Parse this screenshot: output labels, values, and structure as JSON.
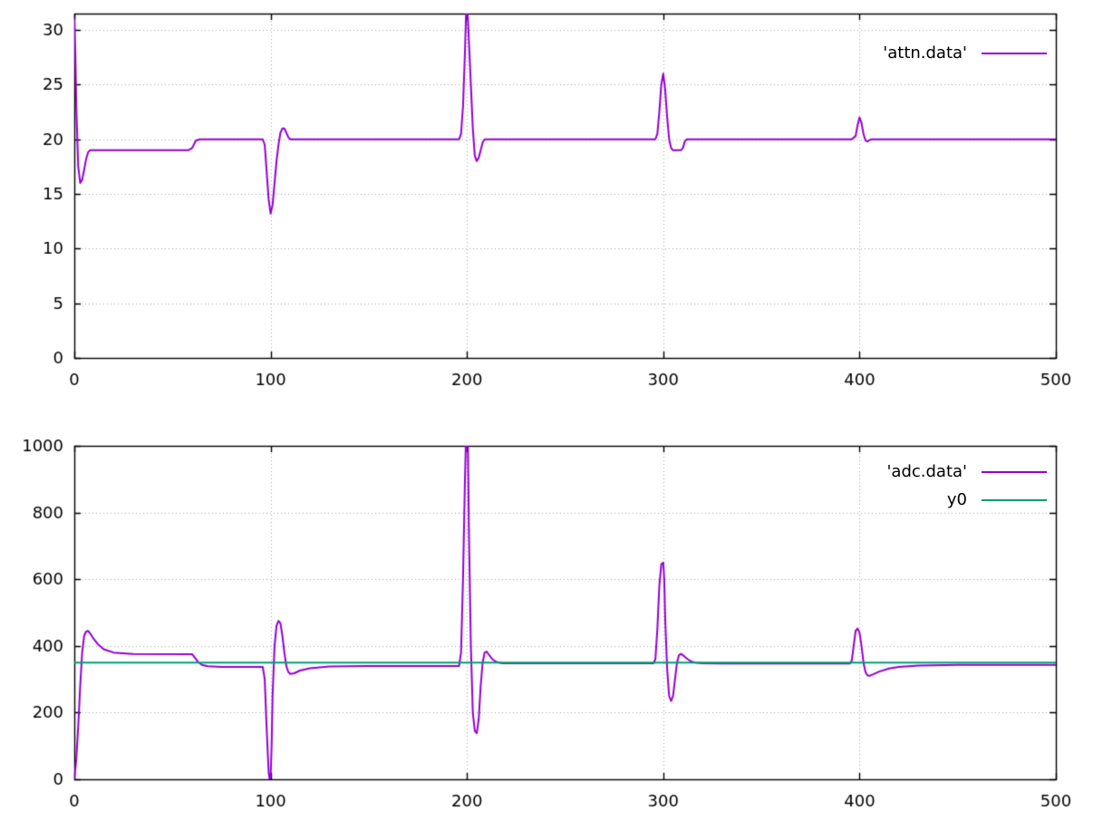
{
  "figure": {
    "background": "#ffffff",
    "border_color": "#000000",
    "grid_color": "#a8a8a8",
    "tick_label_color": "#000000"
  },
  "chart_data": [
    {
      "type": "line",
      "title": "",
      "xlabel": "",
      "ylabel": "",
      "xlim": [
        0,
        500
      ],
      "ylim": [
        0,
        31.5
      ],
      "xticks": [
        0,
        100,
        200,
        300,
        400,
        500
      ],
      "yticks": [
        0,
        5,
        10,
        15,
        20,
        25,
        30
      ],
      "grid": true,
      "legend_position": "top-right-inside",
      "series": [
        {
          "name": "'attn.data'",
          "color": "#9400d3",
          "points": [
            [
              0,
              31
            ],
            [
              0.5,
              28
            ],
            [
              1,
              23
            ],
            [
              2,
              17.5
            ],
            [
              3,
              16
            ],
            [
              4,
              16.3
            ],
            [
              5,
              17.2
            ],
            [
              6,
              18.2
            ],
            [
              7,
              18.8
            ],
            [
              8,
              19
            ],
            [
              58,
              19
            ],
            [
              60,
              19.2
            ],
            [
              62,
              19.9
            ],
            [
              64,
              20
            ],
            [
              96,
              20
            ],
            [
              97,
              19.5
            ],
            [
              98,
              17
            ],
            [
              99,
              14.5
            ],
            [
              100,
              13.2
            ],
            [
              101,
              14
            ],
            [
              102,
              16
            ],
            [
              103,
              18
            ],
            [
              104,
              19.5
            ],
            [
              105,
              20.6
            ],
            [
              106,
              21
            ],
            [
              107,
              21
            ],
            [
              108,
              20.6
            ],
            [
              109,
              20.2
            ],
            [
              110,
              20
            ],
            [
              196,
              20
            ],
            [
              197,
              20.5
            ],
            [
              198,
              23
            ],
            [
              199,
              28
            ],
            [
              199.5,
              31.2
            ],
            [
              200,
              32
            ],
            [
              200.5,
              31
            ],
            [
              201,
              29
            ],
            [
              202,
              25
            ],
            [
              203,
              21
            ],
            [
              204,
              18.5
            ],
            [
              205,
              18
            ],
            [
              206,
              18.3
            ],
            [
              207,
              19
            ],
            [
              208,
              19.7
            ],
            [
              209,
              20
            ],
            [
              296,
              20
            ],
            [
              297,
              20.5
            ],
            [
              298,
              22.5
            ],
            [
              299,
              25
            ],
            [
              300,
              26
            ],
            [
              301,
              24.5
            ],
            [
              302,
              22
            ],
            [
              303,
              20
            ],
            [
              304,
              19.2
            ],
            [
              305,
              19
            ],
            [
              309,
              19
            ],
            [
              310,
              19.2
            ],
            [
              311,
              19.8
            ],
            [
              312,
              20
            ],
            [
              396,
              20
            ],
            [
              398,
              20.3
            ],
            [
              399,
              21.3
            ],
            [
              400,
              22
            ],
            [
              401,
              21.5
            ],
            [
              402,
              20.5
            ],
            [
              403,
              19.9
            ],
            [
              404,
              19.8
            ],
            [
              405,
              19.9
            ],
            [
              406,
              20
            ],
            [
              500,
              20
            ]
          ]
        }
      ]
    },
    {
      "type": "line",
      "title": "",
      "xlabel": "",
      "ylabel": "",
      "xlim": [
        0,
        500
      ],
      "ylim": [
        0,
        1000
      ],
      "xticks": [
        0,
        100,
        200,
        300,
        400,
        500
      ],
      "yticks": [
        0,
        200,
        400,
        600,
        800,
        1000
      ],
      "grid": true,
      "legend_position": "top-right-inside",
      "series": [
        {
          "name": "'adc.data'",
          "color": "#9400d3",
          "points": [
            [
              0,
              0
            ],
            [
              1,
              60
            ],
            [
              2,
              160
            ],
            [
              3,
              280
            ],
            [
              4,
              380
            ],
            [
              5,
              430
            ],
            [
              6,
              443
            ],
            [
              7,
              445
            ],
            [
              8,
              438
            ],
            [
              10,
              420
            ],
            [
              12,
              405
            ],
            [
              15,
              390
            ],
            [
              20,
              380
            ],
            [
              30,
              376
            ],
            [
              60,
              375
            ],
            [
              61,
              368
            ],
            [
              63,
              352
            ],
            [
              65,
              343
            ],
            [
              68,
              339
            ],
            [
              75,
              337
            ],
            [
              96,
              337
            ],
            [
              97,
              300
            ],
            [
              98,
              150
            ],
            [
              99,
              20
            ],
            [
              99.5,
              0
            ],
            [
              100,
              5
            ],
            [
              100.5,
              100
            ],
            [
              101,
              250
            ],
            [
              102,
              400
            ],
            [
              103,
              460
            ],
            [
              104,
              475
            ],
            [
              105,
              468
            ],
            [
              106,
              430
            ],
            [
              107,
              380
            ],
            [
              108,
              340
            ],
            [
              109,
              322
            ],
            [
              110,
              316
            ],
            [
              112,
              318
            ],
            [
              115,
              326
            ],
            [
              120,
              333
            ],
            [
              130,
              338
            ],
            [
              150,
              340
            ],
            [
              196,
              340
            ],
            [
              197,
              380
            ],
            [
              198,
              600
            ],
            [
              199,
              900
            ],
            [
              199.5,
              1020
            ],
            [
              200,
              1050
            ],
            [
              200.5,
              1000
            ],
            [
              201,
              750
            ],
            [
              202,
              400
            ],
            [
              203,
              200
            ],
            [
              204,
              145
            ],
            [
              205,
              138
            ],
            [
              206,
              180
            ],
            [
              207,
              280
            ],
            [
              208,
              350
            ],
            [
              209,
              380
            ],
            [
              210,
              383
            ],
            [
              211,
              375
            ],
            [
              213,
              360
            ],
            [
              215,
              352
            ],
            [
              218,
              348
            ],
            [
              230,
              348
            ],
            [
              295,
              348
            ],
            [
              296,
              360
            ],
            [
              297,
              450
            ],
            [
              298,
              580
            ],
            [
              299,
              645
            ],
            [
              300,
              650
            ],
            [
              300.5,
              600
            ],
            [
              301,
              480
            ],
            [
              302,
              330
            ],
            [
              303,
              250
            ],
            [
              304,
              235
            ],
            [
              305,
              250
            ],
            [
              306,
              300
            ],
            [
              307,
              350
            ],
            [
              308,
              372
            ],
            [
              309,
              376
            ],
            [
              310,
              372
            ],
            [
              312,
              362
            ],
            [
              314,
              354
            ],
            [
              316,
              350
            ],
            [
              320,
              348
            ],
            [
              330,
              347
            ],
            [
              395,
              347
            ],
            [
              396,
              355
            ],
            [
              397,
              400
            ],
            [
              398,
              445
            ],
            [
              399,
              452
            ],
            [
              400,
              440
            ],
            [
              401,
              400
            ],
            [
              402,
              350
            ],
            [
              403,
              322
            ],
            [
              404,
              312
            ],
            [
              405,
              310
            ],
            [
              407,
              315
            ],
            [
              410,
              323
            ],
            [
              415,
              332
            ],
            [
              420,
              337
            ],
            [
              430,
              341
            ],
            [
              450,
              343
            ],
            [
              500,
              343
            ]
          ]
        },
        {
          "name": "y0",
          "color": "#009e73",
          "points": [
            [
              0,
              350
            ],
            [
              500,
              350
            ]
          ]
        }
      ]
    }
  ]
}
